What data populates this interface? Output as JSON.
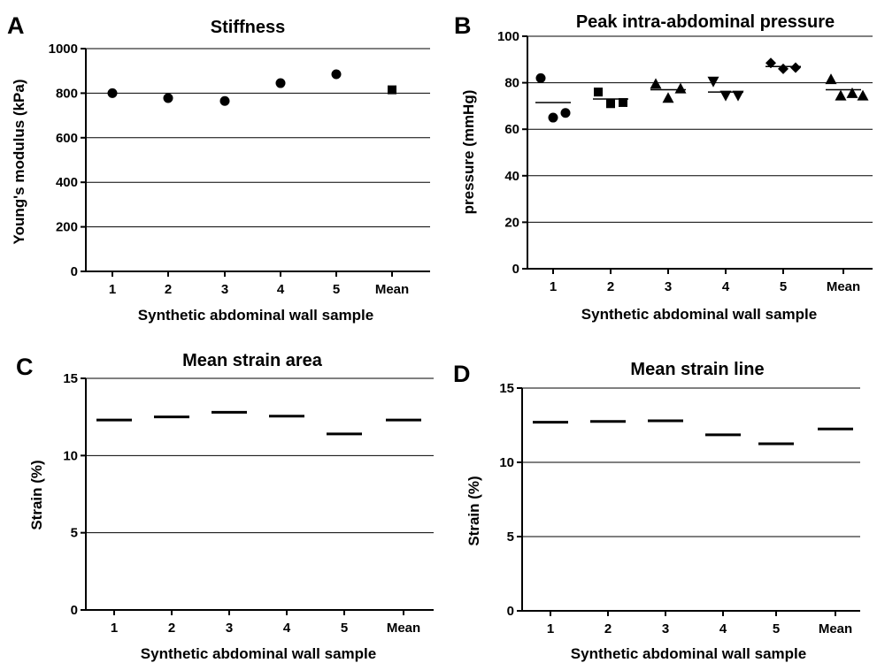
{
  "chart_data": [
    {
      "panel": "A",
      "type": "scatter",
      "title": "Stiffness",
      "xlabel": "Synthetic abdominal wall sample",
      "ylabel": "Young's modulus (kPa)",
      "categories": [
        "1",
        "2",
        "3",
        "4",
        "5",
        "Mean"
      ],
      "ylim": [
        0,
        1000
      ],
      "yticks": [
        0,
        200,
        400,
        600,
        800,
        1000
      ],
      "grid": true,
      "points": [
        {
          "x": "1",
          "y": 800,
          "marker": "circle"
        },
        {
          "x": "2",
          "y": 778,
          "marker": "circle"
        },
        {
          "x": "3",
          "y": 765,
          "marker": "circle"
        },
        {
          "x": "4",
          "y": 845,
          "marker": "circle"
        },
        {
          "x": "5",
          "y": 885,
          "marker": "circle"
        },
        {
          "x": "Mean",
          "y": 815,
          "marker": "square"
        }
      ]
    },
    {
      "panel": "B",
      "type": "scatter",
      "title": "Peak intra-abdominal pressure",
      "xlabel": "Synthetic abdominal wall sample",
      "ylabel": "pressure (mmHg)",
      "categories": [
        "1",
        "2",
        "3",
        "4",
        "5",
        "Mean"
      ],
      "ylim": [
        0,
        100
      ],
      "yticks": [
        0,
        20,
        40,
        60,
        80,
        100
      ],
      "grid": true,
      "groups": [
        {
          "x": "1",
          "marker": "circle",
          "values": [
            82,
            65,
            67
          ],
          "mean": 71.5
        },
        {
          "x": "2",
          "marker": "square",
          "values": [
            76,
            71,
            71.5
          ],
          "mean": 73
        },
        {
          "x": "3",
          "marker": "triangle-up",
          "values": [
            79.5,
            73.5,
            77.5
          ],
          "mean": 77
        },
        {
          "x": "4",
          "marker": "triangle-down",
          "values": [
            80.5,
            74.5,
            74.5
          ],
          "mean": 76
        },
        {
          "x": "5",
          "marker": "diamond",
          "values": [
            88.5,
            86,
            86.5
          ],
          "mean": 87
        },
        {
          "x": "Mean",
          "marker": "triangle-up",
          "values": [
            81.5,
            74.5,
            75.5,
            74.5
          ],
          "mean": 77
        }
      ]
    },
    {
      "panel": "C",
      "type": "scatter",
      "title": "Mean strain area",
      "xlabel": "Synthetic abdominal wall sample",
      "ylabel": "Strain (%)",
      "categories": [
        "1",
        "2",
        "3",
        "4",
        "5",
        "Mean"
      ],
      "ylim": [
        0,
        15
      ],
      "yticks": [
        0,
        5,
        10,
        15
      ],
      "grid": true,
      "values": [
        12.3,
        12.5,
        12.8,
        12.55,
        11.4,
        12.3
      ]
    },
    {
      "panel": "D",
      "type": "scatter",
      "title": "Mean strain line",
      "xlabel": "Synthetic abdominal wall sample",
      "ylabel": "Strain (%)",
      "categories": [
        "1",
        "2",
        "3",
        "4",
        "5",
        "Mean"
      ],
      "ylim": [
        0,
        15
      ],
      "yticks": [
        0,
        5,
        10,
        15
      ],
      "grid": true,
      "values": [
        12.7,
        12.75,
        12.8,
        11.85,
        11.25,
        12.25
      ]
    }
  ]
}
